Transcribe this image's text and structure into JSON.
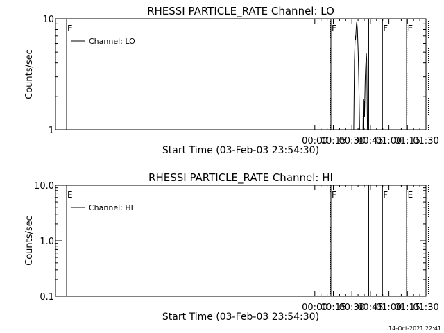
{
  "footer": {
    "timestamp": "14-Oct-2021 22:41"
  },
  "chart_data": [
    {
      "type": "line",
      "title": "RHESSI PARTICLE_RATE Channel: LO",
      "xlabel": "Start Time (03-Feb-03 23:54:30)",
      "ylabel": "Counts/sec",
      "y_scale": "log",
      "ylim": [
        1,
        10
      ],
      "y_ticks": [
        {
          "value": 1,
          "label": "1"
        },
        {
          "value": 10,
          "label": "10"
        }
      ],
      "xlim": [
        -3.5,
        1.5
      ],
      "x_ticks": [
        {
          "value": 0.0,
          "label": "00:00"
        },
        {
          "value": 0.25,
          "label": "00:15"
        },
        {
          "value": 0.5,
          "label": "00:30"
        },
        {
          "value": 0.75,
          "label": "00:45"
        },
        {
          "value": 1.0,
          "label": "01:00"
        },
        {
          "value": 1.25,
          "label": "01:15"
        },
        {
          "value": 1.5,
          "label": "01:30"
        }
      ],
      "legend": {
        "label": "Channel: LO",
        "placement": "top-left"
      },
      "series": [
        {
          "name": "Channel: LO",
          "segments": [
            [
              [
                0.525,
                1.0
              ],
              [
                0.535,
                4.2
              ],
              [
                0.545,
                7.0
              ],
              [
                0.55,
                6.4
              ],
              [
                0.56,
                8.6
              ],
              [
                0.565,
                9.3
              ],
              [
                0.57,
                8.8
              ],
              [
                0.575,
                8.0
              ],
              [
                0.585,
                5.0
              ],
              [
                0.595,
                2.6
              ],
              [
                0.605,
                1.0
              ]
            ],
            [
              [
                0.65,
                1.0
              ],
              [
                0.655,
                1.9
              ],
              [
                0.66,
                1.0
              ],
              [
                0.665,
                1.8
              ],
              [
                0.67,
                1.3
              ],
              [
                0.68,
                2.8
              ],
              [
                0.685,
                3.6
              ],
              [
                0.69,
                4.2
              ],
              [
                0.695,
                4.9
              ],
              [
                0.7,
                4.3
              ],
              [
                0.705,
                2.2
              ],
              [
                0.71,
                1.0
              ]
            ]
          ]
        }
      ],
      "markers": [
        {
          "x": -3.35,
          "label": "E",
          "style": "solid"
        },
        {
          "x": 0.21,
          "label": "",
          "style": "dotted"
        },
        {
          "x": 0.217,
          "label": "F",
          "style": "solid"
        },
        {
          "x": 0.727,
          "label": "",
          "style": "solid"
        },
        {
          "x": 0.913,
          "label": "F",
          "style": "solid"
        },
        {
          "x": 1.238,
          "label": "",
          "style": "solid"
        },
        {
          "x": 1.244,
          "label": "E",
          "style": "dotted"
        },
        {
          "x": 1.533,
          "label": "",
          "style": "dotted"
        }
      ]
    },
    {
      "type": "line",
      "title": "RHESSI PARTICLE_RATE Channel: HI",
      "xlabel": "Start Time (03-Feb-03 23:54:30)",
      "ylabel": "Counts/sec",
      "y_scale": "log",
      "ylim": [
        0.1,
        10
      ],
      "y_ticks": [
        {
          "value": 0.1,
          "label": "0.1"
        },
        {
          "value": 1,
          "label": "1.0"
        },
        {
          "value": 10,
          "label": "10.0"
        }
      ],
      "xlim": [
        -3.5,
        1.5
      ],
      "x_ticks": [
        {
          "value": 0.0,
          "label": "00:00"
        },
        {
          "value": 0.25,
          "label": "00:15"
        },
        {
          "value": 0.5,
          "label": "00:30"
        },
        {
          "value": 0.75,
          "label": "00:45"
        },
        {
          "value": 1.0,
          "label": "01:00"
        },
        {
          "value": 1.25,
          "label": "01:15"
        },
        {
          "value": 1.5,
          "label": "01:30"
        }
      ],
      "legend": {
        "label": "Channel: HI",
        "placement": "top-left"
      },
      "series": [
        {
          "name": "Channel: HI",
          "segments": []
        }
      ],
      "markers": [
        {
          "x": -3.35,
          "label": "E",
          "style": "solid"
        },
        {
          "x": 0.21,
          "label": "",
          "style": "dotted"
        },
        {
          "x": 0.217,
          "label": "F",
          "style": "solid"
        },
        {
          "x": 0.727,
          "label": "",
          "style": "solid"
        },
        {
          "x": 0.913,
          "label": "F",
          "style": "solid"
        },
        {
          "x": 1.238,
          "label": "",
          "style": "solid"
        },
        {
          "x": 1.244,
          "label": "E",
          "style": "dotted"
        },
        {
          "x": 1.533,
          "label": "",
          "style": "dotted"
        }
      ]
    }
  ]
}
